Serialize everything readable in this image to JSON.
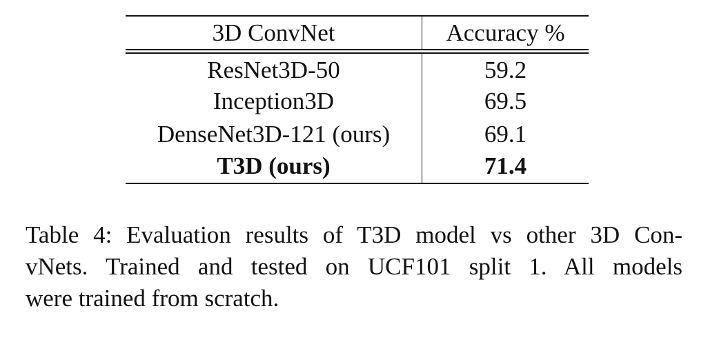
{
  "table": {
    "headers": [
      "3D ConvNet",
      "Accuracy %"
    ],
    "rows": [
      {
        "model": "ResNet3D-50",
        "accuracy": "59.2",
        "bold": false
      },
      {
        "model": "Inception3D",
        "accuracy": "69.5",
        "bold": false
      },
      {
        "model": "DenseNet3D-121 (ours)",
        "accuracy": "69.1",
        "bold": false
      },
      {
        "model": "T3D (ours)",
        "accuracy": "71.4",
        "bold": true
      }
    ]
  },
  "caption": {
    "lines": [
      "Table 4: Evaluation results of T3D model vs other 3D Con-",
      "vNets.  Trained and tested on UCF101 split 1.  All models",
      "were trained from scratch."
    ]
  }
}
